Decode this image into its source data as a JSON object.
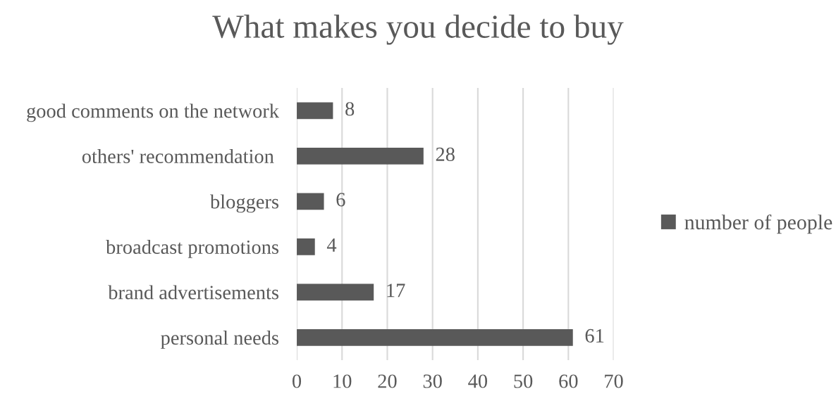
{
  "chart_data": {
    "type": "bar",
    "orientation": "horizontal",
    "title": "What makes you decide to buy",
    "categories": [
      "good comments on the network",
      "others' recommendation ",
      "bloggers",
      "broadcast promotions",
      "brand advertisements",
      "personal needs"
    ],
    "series": [
      {
        "name": "number of people",
        "color": "#595959",
        "values": [
          8,
          28,
          6,
          4,
          17,
          61
        ]
      }
    ],
    "xlim": [
      0,
      70
    ],
    "xticks": [
      0,
      10,
      20,
      30,
      40,
      50,
      60,
      70
    ],
    "grid": "x",
    "legend": "right",
    "data_labels": true
  }
}
